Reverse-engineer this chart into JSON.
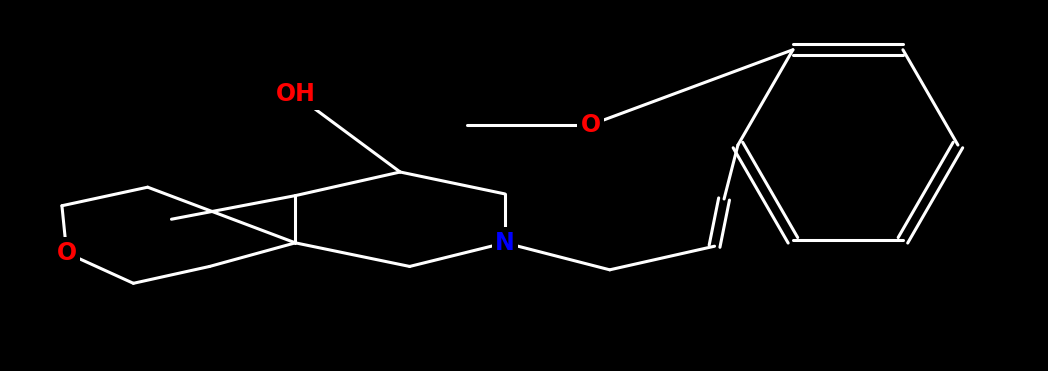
{
  "background_color": "#000000",
  "bond_color": "#ffffff",
  "N_color": "#0000ff",
  "O_color": "#ff0000",
  "bond_width": 2.2,
  "figsize": [
    10.48,
    3.71
  ],
  "dpi": 100,
  "xlim": [
    0,
    10.48
  ],
  "ylim": [
    0,
    3.71
  ],
  "atoms": {
    "OH": {
      "label": "OH",
      "color": "#ff0000",
      "fs": 18
    },
    "O_thp": {
      "label": "O",
      "color": "#ff0000",
      "fs": 18
    },
    "O_ether": {
      "label": "O",
      "color": "#ff0000",
      "fs": 18
    },
    "N": {
      "label": "N",
      "color": "#0000ff",
      "fs": 18
    }
  }
}
